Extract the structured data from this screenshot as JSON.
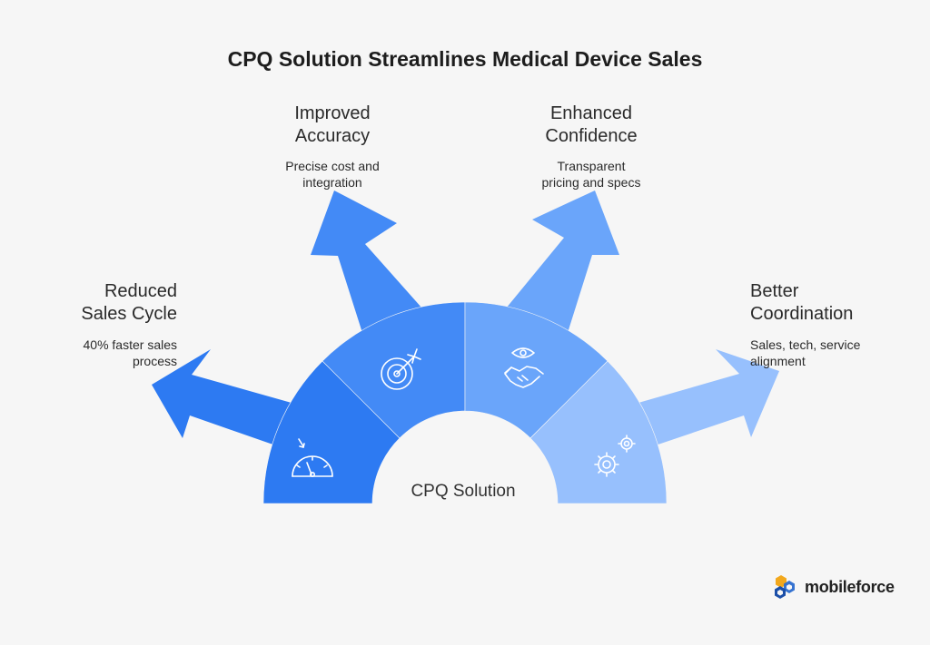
{
  "title": "CPQ Solution Streamlines Medical Device Sales",
  "center_label": "CPQ Solution",
  "items": [
    {
      "title_line1": "Reduced",
      "title_line2": "Sales Cycle",
      "desc_line1": "40% faster sales",
      "desc_line2": "process",
      "icon": "speedometer-icon",
      "color": "#2d7af2"
    },
    {
      "title_line1": "Improved",
      "title_line2": "Accuracy",
      "desc_line1": "Precise cost and",
      "desc_line2": "integration",
      "icon": "target-icon",
      "color": "#438af6"
    },
    {
      "title_line1": "Enhanced",
      "title_line2": "Confidence",
      "desc_line1": "Transparent",
      "desc_line2": "pricing and specs",
      "icon": "handshake-eye-icon",
      "color": "#6aa5fa"
    },
    {
      "title_line1": "Better",
      "title_line2": "Coordination",
      "desc_line1": "Sales, tech, service",
      "desc_line2": "alignment",
      "icon": "gears-icon",
      "color": "#97c0fd"
    }
  ],
  "logo": {
    "text": "mobileforce"
  }
}
